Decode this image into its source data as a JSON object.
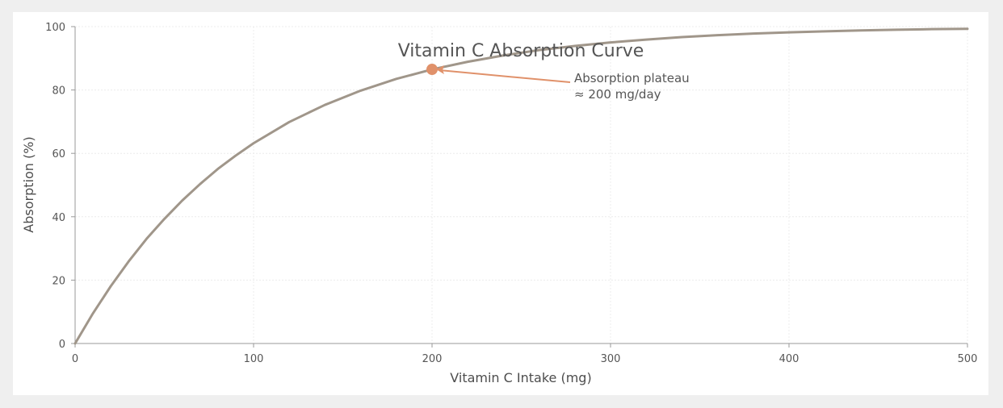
{
  "chart_data": {
    "type": "line",
    "title": "Vitamin C Absorption Curve",
    "xlabel": "Vitamin C Intake (mg)",
    "ylabel": "Absorption (%)",
    "xlim": [
      0,
      500
    ],
    "ylim": [
      0,
      100
    ],
    "x_ticks": [
      0,
      100,
      200,
      300,
      400,
      500
    ],
    "y_ticks": [
      0,
      20,
      40,
      60,
      80,
      100
    ],
    "grid": true,
    "series": [
      {
        "name": "Absorption",
        "color": "#a0968a",
        "x": [
          0,
          10,
          20,
          30,
          40,
          50,
          60,
          70,
          80,
          90,
          100,
          120,
          140,
          160,
          180,
          200,
          220,
          240,
          260,
          280,
          300,
          320,
          340,
          360,
          380,
          400,
          420,
          440,
          460,
          480,
          500
        ],
        "y": [
          0,
          9.5,
          18.1,
          25.9,
          33.0,
          39.3,
          45.1,
          50.3,
          55.1,
          59.3,
          63.2,
          69.9,
          75.3,
          79.8,
          83.5,
          86.5,
          88.9,
          90.9,
          92.6,
          93.9,
          95.0,
          95.9,
          96.7,
          97.3,
          97.8,
          98.2,
          98.5,
          98.8,
          99.0,
          99.2,
          99.3
        ]
      }
    ],
    "annotation": {
      "point_x": 200,
      "point_y": 86.5,
      "color": "#e0916a",
      "text_lines": [
        "Absorption plateau",
        "≈ 200 mg/day"
      ]
    }
  }
}
